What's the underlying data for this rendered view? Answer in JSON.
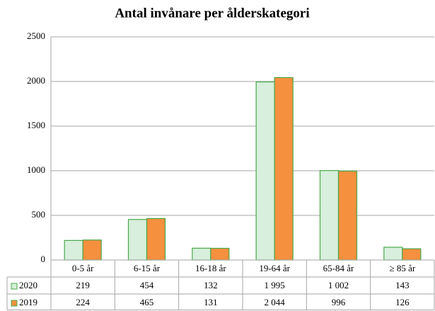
{
  "chart_data": {
    "type": "bar",
    "title": "Antal invånare per ålderskategori",
    "categories": [
      "0-5 år",
      "6-15 år",
      "16-18 år",
      "19-64 år",
      "65-84 år",
      "≥ 85 år"
    ],
    "series": [
      {
        "name": "2020",
        "color": "#d7efdc",
        "values": [
          219,
          454,
          132,
          1995,
          1002,
          143
        ],
        "value_labels": [
          "219",
          "454",
          "132",
          "1 995",
          "1 002",
          "143"
        ]
      },
      {
        "name": "2019",
        "color": "#f5903e",
        "values": [
          224,
          465,
          131,
          2044,
          996,
          126
        ],
        "value_labels": [
          "224",
          "465",
          "131",
          "2 044",
          "996",
          "126"
        ]
      }
    ],
    "ylim": [
      0,
      2500
    ],
    "yticks": [
      0,
      500,
      1000,
      1500,
      2000,
      2500
    ],
    "grid": true
  }
}
